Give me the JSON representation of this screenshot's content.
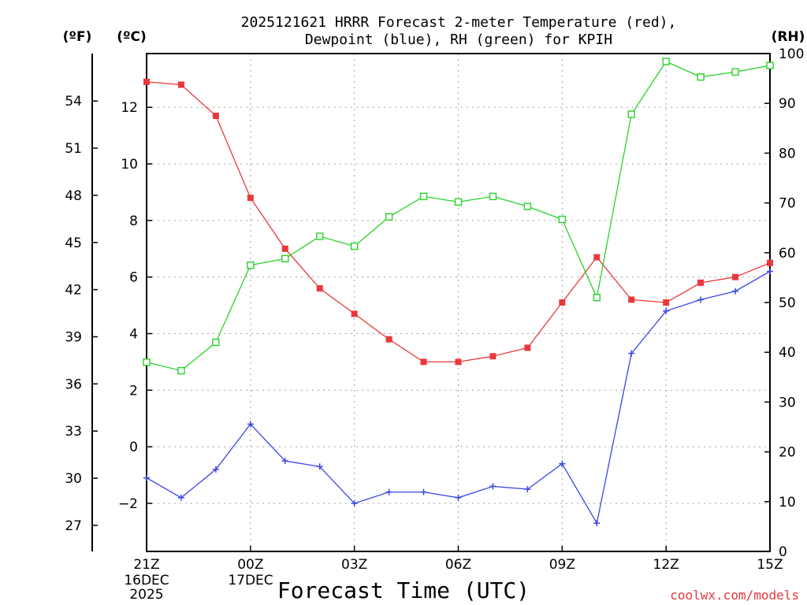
{
  "title_line1": "2025121621 HRRR Forecast 2-meter Temperature (red),",
  "title_line2": "Dewpoint (blue), RH (green) for KPIH",
  "units": {
    "fahrenheit": "(ºF)",
    "celsius": "(ºC)",
    "rh": "(RH)"
  },
  "xlabel": "Forecast Time (UTC)",
  "credit": "coolwx.com/models",
  "date_labels": {
    "day1": "16DEC",
    "year": "2025",
    "day2": "17DEC"
  },
  "colors": {
    "temperature": "#e8383b",
    "dewpoint": "#3a46e8",
    "rh": "#2ad32a"
  },
  "chart_data": {
    "type": "line",
    "title": "2025121621 HRRR Forecast 2-meter Temperature (red), Dewpoint (blue), RH (green) for KPIH",
    "xlabel": "Forecast Time (UTC)",
    "x": [
      "21Z",
      "22Z",
      "23Z",
      "00Z",
      "01Z",
      "02Z",
      "03Z",
      "04Z",
      "05Z",
      "06Z",
      "07Z",
      "08Z",
      "09Z",
      "10Z",
      "11Z",
      "12Z",
      "13Z",
      "14Z",
      "15Z"
    ],
    "x_tick_labels": [
      {
        "index": 0,
        "label": "21Z"
      },
      {
        "index": 3,
        "label": "00Z"
      },
      {
        "index": 6,
        "label": "03Z"
      },
      {
        "index": 9,
        "label": "06Z"
      },
      {
        "index": 12,
        "label": "09Z"
      },
      {
        "index": 15,
        "label": "12Z"
      },
      {
        "index": 18,
        "label": "15Z"
      }
    ],
    "ylim_c": [
      -3.7,
      13.9
    ],
    "ylim_rh": [
      0,
      100
    ],
    "celsius_ticks": [
      -2,
      0,
      2,
      4,
      6,
      8,
      10,
      12
    ],
    "fahrenheit_ticks": [
      27,
      30,
      33,
      36,
      39,
      42,
      45,
      48,
      51,
      54
    ],
    "rh_ticks": [
      0,
      10,
      20,
      30,
      40,
      50,
      60,
      70,
      80,
      90,
      100
    ],
    "series": [
      {
        "name": "Temperature (°C)",
        "color": "#e8383b",
        "marker": "filled-square",
        "values": [
          12.9,
          12.8,
          11.7,
          8.8,
          7.0,
          5.6,
          4.7,
          3.8,
          3.0,
          3.0,
          3.2,
          3.5,
          5.1,
          6.7,
          5.2,
          5.1,
          5.8,
          6.0,
          6.5
        ]
      },
      {
        "name": "Dewpoint (°C)",
        "color": "#3a46e8",
        "marker": "plus",
        "values": [
          -1.1,
          -1.8,
          -0.8,
          0.8,
          -0.5,
          -0.7,
          -2.0,
          -1.6,
          -1.6,
          -1.8,
          -1.4,
          -1.5,
          -0.6,
          -2.7,
          3.3,
          4.8,
          5.2,
          5.5,
          6.2
        ]
      },
      {
        "name": "RH (%)",
        "color": "#2ad32a",
        "marker": "open-square",
        "values": [
          38,
          36.3,
          42,
          57.5,
          58.8,
          63.3,
          61.3,
          67.2,
          71.3,
          70.2,
          71.3,
          69.3,
          66.7,
          51,
          87.8,
          98.4,
          95.3,
          96.3,
          97.6
        ]
      }
    ]
  }
}
